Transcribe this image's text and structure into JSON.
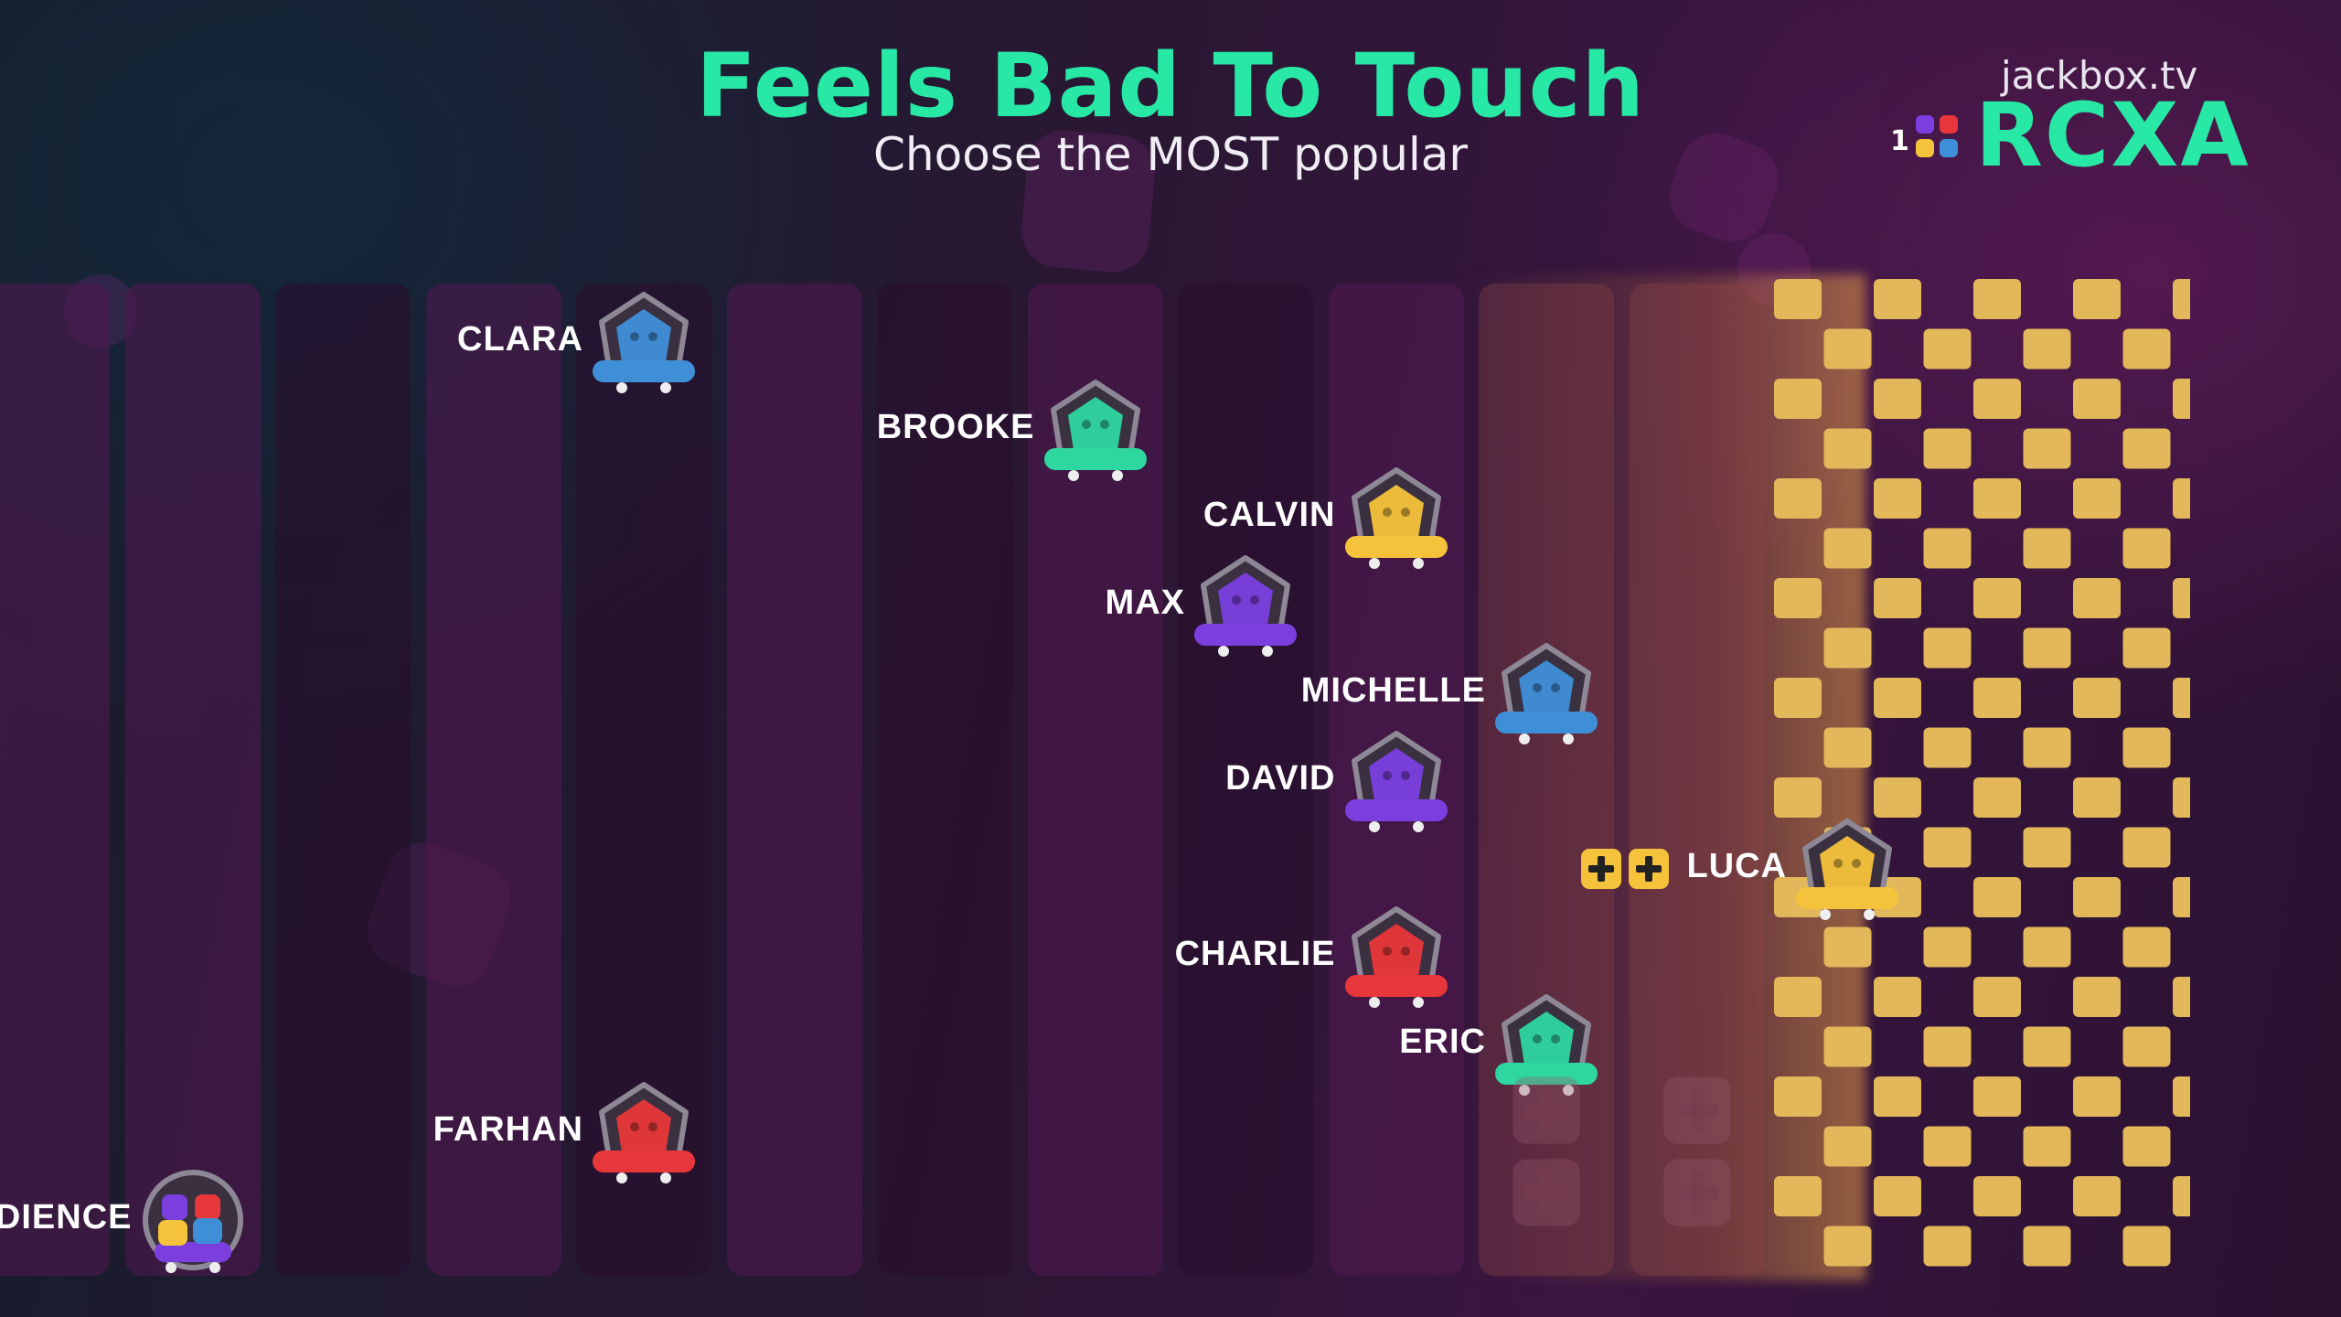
{
  "header": {
    "title": "Feels Bad To Touch",
    "subtitle": "Choose the MOST popular"
  },
  "branding": {
    "site": "jackbox.tv",
    "room_code": "RCXA",
    "badge_number": "1"
  },
  "players": [
    {
      "name": "CLARA",
      "color": "#3f8fd8",
      "column": 4,
      "row": 0
    },
    {
      "name": "BROOKE",
      "color": "#2ed6a0",
      "column": 7,
      "row": 1
    },
    {
      "name": "CALVIN",
      "color": "#f5c33b",
      "column": 9,
      "row": 2
    },
    {
      "name": "MAX",
      "color": "#7b3fe0",
      "column": 8,
      "row": 3
    },
    {
      "name": "MICHELLE",
      "color": "#3f8fd8",
      "column": 10,
      "row": 4
    },
    {
      "name": "DAVID",
      "color": "#7b3fe0",
      "column": 9,
      "row": 5
    },
    {
      "name": "LUCA",
      "color": "#f5c33b",
      "column": 12,
      "row": 6,
      "bonus": true
    },
    {
      "name": "CHARLIE",
      "color": "#e8373a",
      "column": 9,
      "row": 7
    },
    {
      "name": "ERIC",
      "color": "#2ed6a0",
      "column": 10,
      "row": 8
    },
    {
      "name": "FARHAN",
      "color": "#e8373a",
      "column": 4,
      "row": 9
    },
    {
      "name": "AUDIENCE",
      "color": "#7b3fe0",
      "column": 1,
      "row": 10,
      "audience": true
    }
  ],
  "colors": {
    "accent": "#27e8a5",
    "finish_checker": "#e2b85a"
  },
  "icons": {
    "bonus": "plus-box-icon",
    "empty_slot": "plus-slot-icon"
  }
}
